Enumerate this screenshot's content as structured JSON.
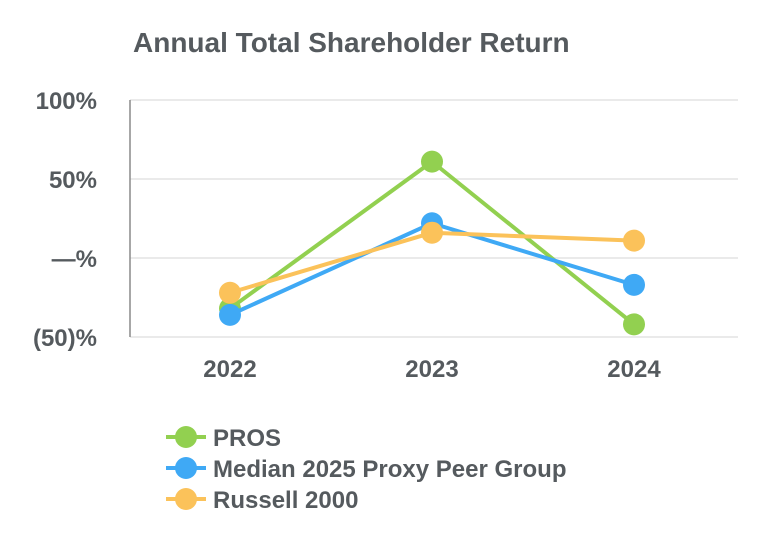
{
  "chart_data": {
    "type": "line",
    "title": "Annual Total Shareholder Return",
    "xlabel": "",
    "ylabel": "",
    "categories": [
      "2022",
      "2023",
      "2024"
    ],
    "y_ticks": [
      {
        "value": 100,
        "label": "100%"
      },
      {
        "value": 50,
        "label": "50%"
      },
      {
        "value": 0,
        "label": "—%"
      },
      {
        "value": -50,
        "label": "(50)%"
      }
    ],
    "ylim": [
      -50,
      100
    ],
    "grid": true,
    "legend_position": "bottom-left",
    "series": [
      {
        "name": "PROS",
        "color": "#92d050",
        "values": [
          -32,
          61,
          -42
        ]
      },
      {
        "name": "Median 2025 Proxy Peer Group",
        "color": "#3fa9f5",
        "values": [
          -36,
          22,
          -17
        ]
      },
      {
        "name": "Russell 2000",
        "color": "#fbc25a",
        "values": [
          -22,
          16,
          11
        ]
      }
    ]
  }
}
